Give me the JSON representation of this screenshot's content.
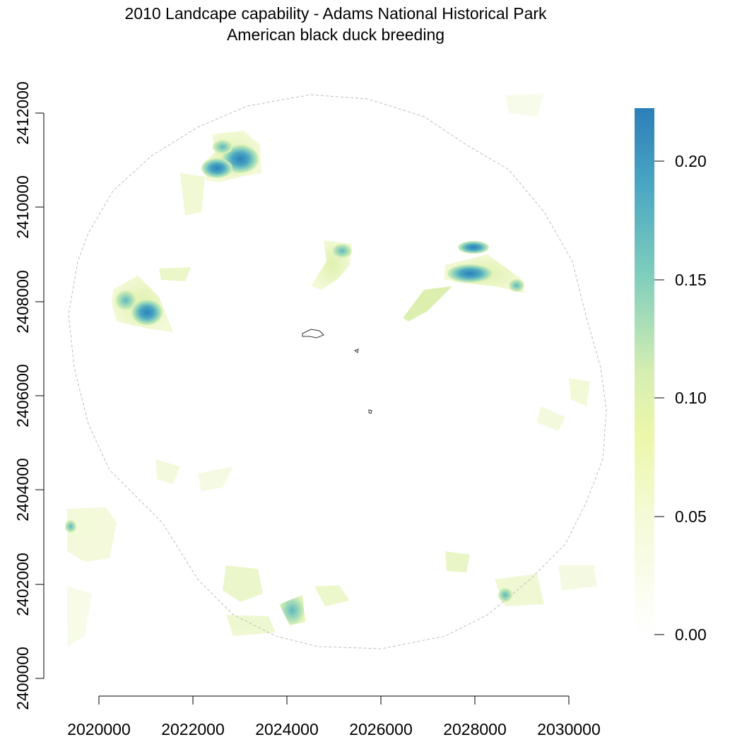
{
  "title_line1": "2010 Landcape capability - Adams National Historical Park",
  "title_line2": "American black duck breeding",
  "x_ticks": [
    "2020000",
    "2022000",
    "2024000",
    "2026000",
    "2028000",
    "2030000"
  ],
  "y_ticks": [
    "2400000",
    "2402000",
    "2404000",
    "2406000",
    "2408000",
    "2410000",
    "2412000"
  ],
  "legend_ticks": [
    "0.00",
    "0.05",
    "0.10",
    "0.15",
    "0.20"
  ],
  "colors": {
    "scale_low": "#fcfdf4",
    "scale_mid_low": "#eef8b4",
    "scale_mid": "#d4ecb0",
    "scale_mid_high": "#7ecfbd",
    "scale_high": "#2b82ba",
    "buffer_outline": "#bdbdbd",
    "park_outline": "#333333"
  },
  "chart_data": {
    "type": "heatmap",
    "title": "2010 Landcape capability - Adams National Historical Park\nAmerican black duck breeding",
    "xlim": [
      2018600,
      2030000
    ],
    "ylim": [
      2400000,
      2412000
    ],
    "color_scale": {
      "min": 0.0,
      "max": 0.22,
      "ticks": [
        0.0,
        0.05,
        0.1,
        0.15,
        0.2
      ]
    },
    "hotspots": [
      {
        "x": 2023000,
        "y": 2411050,
        "value": 0.21
      },
      {
        "x": 2022450,
        "y": 2410850,
        "value": 0.19
      },
      {
        "x": 2022650,
        "y": 2411250,
        "value": 0.16
      },
      {
        "x": 2020700,
        "y": 2407800,
        "value": 0.2
      },
      {
        "x": 2020300,
        "y": 2408050,
        "value": 0.16
      },
      {
        "x": 2028000,
        "y": 2409200,
        "value": 0.2
      },
      {
        "x": 2027800,
        "y": 2408600,
        "value": 0.21
      },
      {
        "x": 2028900,
        "y": 2408400,
        "value": 0.17
      },
      {
        "x": 2025200,
        "y": 2408900,
        "value": 0.13
      },
      {
        "x": 2024100,
        "y": 2401300,
        "value": 0.18
      },
      {
        "x": 2027000,
        "y": 2407800,
        "value": 0.08
      },
      {
        "x": 2018800,
        "y": 2403100,
        "value": 0.13
      },
      {
        "x": 2028700,
        "y": 2401700,
        "value": 0.12
      }
    ]
  }
}
